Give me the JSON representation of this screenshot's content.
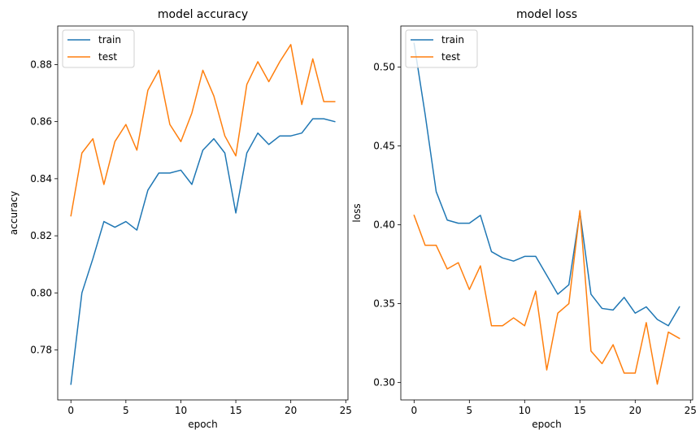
{
  "chart_data": [
    {
      "type": "line",
      "title": "model accuracy",
      "xlabel": "epoch",
      "ylabel": "accuracy",
      "xlim": [
        -1.2,
        25.2
      ],
      "ylim": [
        0.7625,
        0.8935
      ],
      "xticks": [
        0,
        5,
        10,
        15,
        20,
        25
      ],
      "xtick_labels": [
        "0",
        "5",
        "10",
        "15",
        "20",
        "25"
      ],
      "yticks": [
        0.78,
        0.8,
        0.82,
        0.84,
        0.86,
        0.88
      ],
      "ytick_labels": [
        "0.78",
        "0.80",
        "0.82",
        "0.84",
        "0.86",
        "0.88"
      ],
      "legend_position": "top-left",
      "x": [
        0,
        1,
        2,
        3,
        4,
        5,
        6,
        7,
        8,
        9,
        10,
        11,
        12,
        13,
        14,
        15,
        16,
        17,
        18,
        19,
        20,
        21,
        22,
        23,
        24
      ],
      "series": [
        {
          "name": "train",
          "color": "#1f77b4",
          "values": [
            0.768,
            0.8,
            0.812,
            0.825,
            0.823,
            0.825,
            0.822,
            0.836,
            0.842,
            0.842,
            0.843,
            0.838,
            0.85,
            0.854,
            0.849,
            0.828,
            0.849,
            0.856,
            0.852,
            0.855,
            0.855,
            0.856,
            0.861,
            0.861,
            0.86
          ]
        },
        {
          "name": "test",
          "color": "#ff7f0e",
          "values": [
            0.827,
            0.849,
            0.854,
            0.838,
            0.853,
            0.859,
            0.85,
            0.871,
            0.878,
            0.859,
            0.853,
            0.863,
            0.878,
            0.869,
            0.855,
            0.848,
            0.873,
            0.881,
            0.874,
            0.881,
            0.887,
            0.866,
            0.882,
            0.867,
            0.867
          ]
        }
      ]
    },
    {
      "type": "line",
      "title": "model loss",
      "xlabel": "epoch",
      "ylabel": "loss",
      "xlim": [
        -1.2,
        25.2
      ],
      "ylim": [
        0.289,
        0.526
      ],
      "xticks": [
        0,
        5,
        10,
        15,
        20,
        25
      ],
      "xtick_labels": [
        "0",
        "5",
        "10",
        "15",
        "20",
        "25"
      ],
      "yticks": [
        0.3,
        0.35,
        0.4,
        0.45,
        0.5
      ],
      "ytick_labels": [
        "0.30",
        "0.35",
        "0.40",
        "0.45",
        "0.50"
      ],
      "legend_position": "top-left",
      "x": [
        0,
        1,
        2,
        3,
        4,
        5,
        6,
        7,
        8,
        9,
        10,
        11,
        12,
        13,
        14,
        15,
        16,
        17,
        18,
        19,
        20,
        21,
        22,
        23,
        24
      ],
      "series": [
        {
          "name": "train",
          "color": "#1f77b4",
          "values": [
            0.515,
            0.47,
            0.421,
            0.403,
            0.401,
            0.401,
            0.406,
            0.383,
            0.379,
            0.377,
            0.38,
            0.38,
            0.368,
            0.356,
            0.362,
            0.408,
            0.356,
            0.347,
            0.346,
            0.354,
            0.344,
            0.348,
            0.34,
            0.336,
            0.348
          ]
        },
        {
          "name": "test",
          "color": "#ff7f0e",
          "values": [
            0.406,
            0.387,
            0.387,
            0.372,
            0.376,
            0.359,
            0.374,
            0.336,
            0.336,
            0.341,
            0.336,
            0.358,
            0.308,
            0.344,
            0.35,
            0.409,
            0.32,
            0.312,
            0.324,
            0.306,
            0.306,
            0.338,
            0.299,
            0.332,
            0.328
          ]
        }
      ]
    }
  ]
}
